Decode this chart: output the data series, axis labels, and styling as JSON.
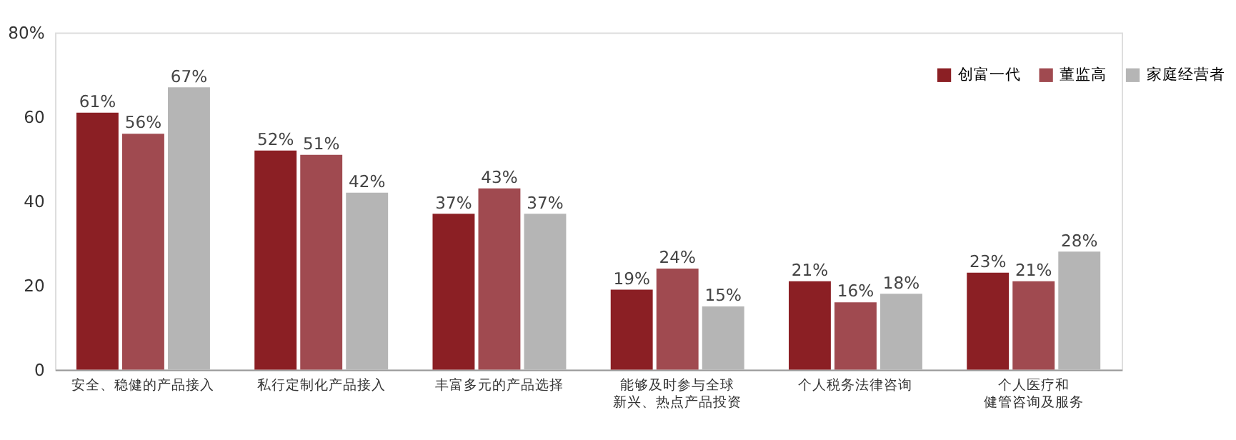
{
  "chart_data": {
    "type": "bar",
    "categories": [
      "安全、稳健的产品接入",
      "私行定制化产品接入",
      "丰富多元的产品选择",
      "能够及时参与全球新兴、热点产品投资",
      "个人税务法律咨询",
      "个人医疗和健管咨询及服务"
    ],
    "series": [
      {
        "name": "创富一代",
        "color": "#8b1f24",
        "values": [
          61,
          52,
          37,
          19,
          21,
          23
        ],
        "value_labels": [
          "61%",
          "52%",
          "37%",
          "19%",
          "21%",
          "23%"
        ]
      },
      {
        "name": "董监高",
        "color": "#a04a50",
        "values": [
          56,
          51,
          43,
          24,
          16,
          21
        ],
        "value_labels": [
          "56%",
          "51%",
          "43%",
          "24%",
          "16%",
          "21%"
        ]
      },
      {
        "name": "家庭经营者",
        "color": "#b5b5b5",
        "values": [
          67,
          42,
          37,
          15,
          18,
          28
        ],
        "value_labels": [
          "67%",
          "42%",
          "37%",
          "15%",
          "18%",
          "28%"
        ]
      }
    ],
    "ylim": [
      0,
      80
    ],
    "yticks": [
      0,
      20,
      40,
      60,
      {
        "value": 80,
        "label": "80%"
      }
    ],
    "grid": false,
    "legend": "top right"
  }
}
